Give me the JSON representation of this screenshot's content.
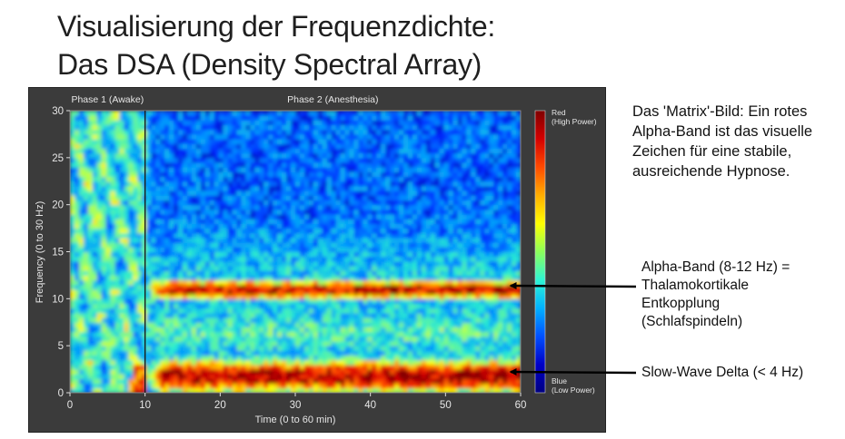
{
  "slide": {
    "title_lines": [
      "Visualisierung der Frequenzdichte:",
      "Das DSA (Density Spectral Array)"
    ],
    "description": "Das 'Matrix'-Bild: Ein rotes Alpha-Band ist das visuelle Zeichen für eine stabile, ausreichende Hypnose.",
    "annotation_alpha_lines": [
      "Alpha-Band (8-12 Hz) =",
      "Thalamokortikale",
      "Entkopplung",
      "(Schlafspindeln)"
    ],
    "annotation_delta": "Slow-Wave Delta (< 4 Hz)"
  },
  "chart_data": {
    "type": "heatmap",
    "xlabel": "Time (0 to 60 min)",
    "ylabel": "Frequency (0 to 30 Hz)",
    "xlim": [
      0,
      60
    ],
    "ylim": [
      0,
      30
    ],
    "xticks": [
      0,
      10,
      20,
      30,
      40,
      50,
      60
    ],
    "yticks": [
      0,
      5,
      10,
      15,
      20,
      25,
      30
    ],
    "phases": [
      {
        "label": "Phase 1 (Awake)",
        "start": 0,
        "end": 10
      },
      {
        "label": "Phase 2 (Anesthesia)",
        "start": 10,
        "end": 60
      }
    ],
    "colorbar": {
      "high_label_lines": [
        "Red",
        "(High Power)"
      ],
      "low_label_lines": [
        "Blue",
        "(Low Power)"
      ],
      "colors": [
        "#7f0000",
        "#d40000",
        "#ff4a00",
        "#ffae00",
        "#ffff00",
        "#8cff5a",
        "#2ef5d4",
        "#00b2ff",
        "#0050ff",
        "#0000c8",
        "#000080"
      ]
    },
    "annotations": [
      {
        "text_key": "annotation_alpha_lines",
        "time": 60,
        "frequency": 10.5
      },
      {
        "text_key": "annotation_delta",
        "time": 60,
        "frequency": 2
      }
    ]
  }
}
